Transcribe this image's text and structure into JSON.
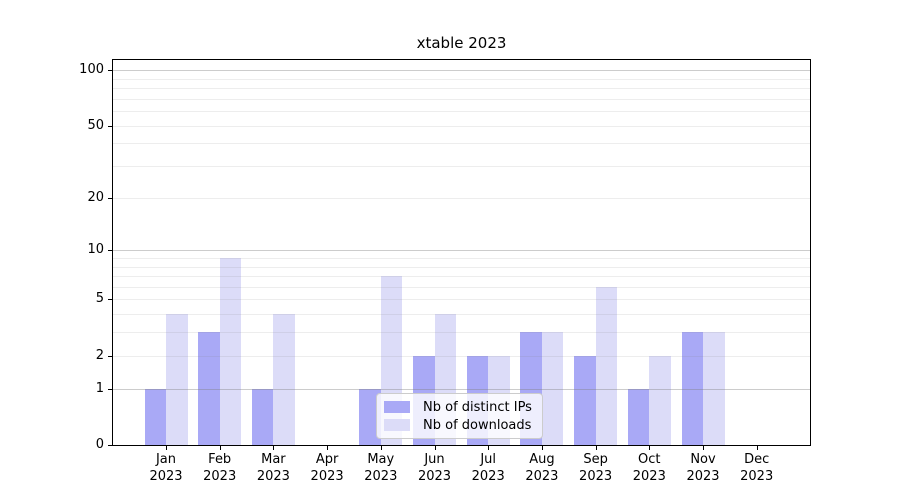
{
  "title": "xtable 2023",
  "legend": {
    "items": [
      {
        "label": "Nb of distinct IPs"
      },
      {
        "label": "Nb of downloads"
      }
    ]
  },
  "chart_data": {
    "type": "bar",
    "title": "xtable 2023",
    "categories": [
      "Jan",
      "Feb",
      "Mar",
      "Apr",
      "May",
      "Jun",
      "Jul",
      "Aug",
      "Sep",
      "Oct",
      "Nov",
      "Dec"
    ],
    "year": "2023",
    "series": [
      {
        "name": "Nb of distinct IPs",
        "color": "#a9a9f6",
        "values": [
          1,
          3,
          1,
          0,
          1,
          2,
          2,
          3,
          2,
          1,
          3,
          0
        ]
      },
      {
        "name": "Nb of downloads",
        "color": "#dcdcf8",
        "values": [
          4,
          9,
          4,
          0,
          7,
          4,
          2,
          3,
          6,
          2,
          3,
          0
        ]
      }
    ],
    "xlabel": "",
    "ylabel": "",
    "y_axis": {
      "scale": "log10(1+x)",
      "tick_labels": [
        0,
        1,
        2,
        5,
        10,
        20,
        50,
        100
      ],
      "grid_major": [
        1,
        10,
        100
      ],
      "grid_minor": [
        2,
        3,
        4,
        5,
        6,
        7,
        8,
        9,
        20,
        30,
        40,
        50,
        60,
        70,
        80,
        90
      ],
      "ylim": [
        0,
        113
      ]
    },
    "grid": true,
    "legend_position": "inside lower-center"
  },
  "colors": {
    "background": "#ffffff",
    "bar_distinct_ips": "#a9a9f6",
    "bar_downloads": "#dcdcf8",
    "axis": "#000000",
    "grid_major": "#c9c9c9",
    "grid_minor": "#eaeaea",
    "legend_border": "#cccccc"
  }
}
